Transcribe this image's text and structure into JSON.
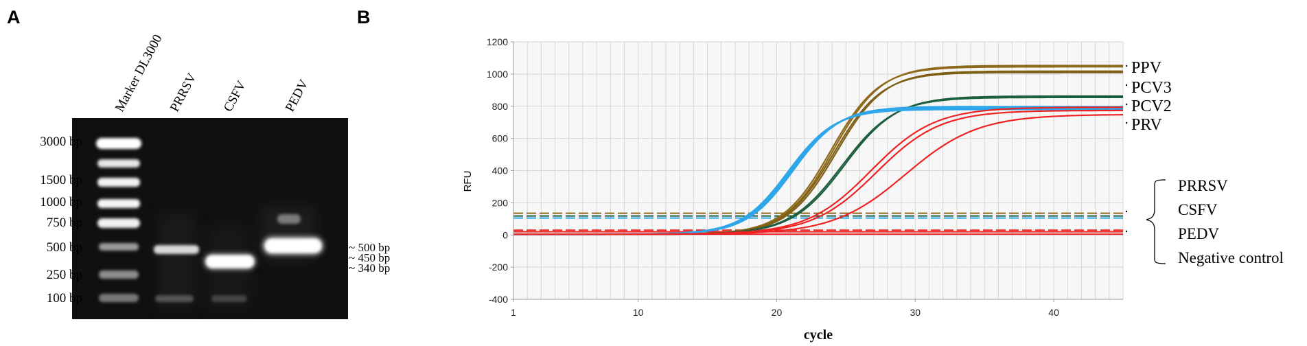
{
  "panel_a": {
    "letter": "A",
    "lanes": [
      "Marker DL3000",
      "PRRSV",
      "CSFV",
      "PEDV"
    ],
    "marker_sizes": [
      "3000 bp",
      "1500 bp",
      "1000 bp",
      "750 bp",
      "500 bp",
      "250 bp",
      "100 bp"
    ],
    "band_labels": [
      "~ 500 bp",
      "~ 450 bp",
      "~ 340 bp"
    ]
  },
  "panel_b": {
    "letter": "B",
    "colors": {
      "ppv": "#8f6a1c",
      "pcv3": "#7e5f16",
      "pcv2": "#1d5e3e",
      "blue": "#2ea6ea",
      "red": "#ee2222",
      "grid": "#d6d6d6",
      "plot_bg": "#f7f7f7"
    },
    "chart_data": {
      "type": "line",
      "xlabel": "cycle",
      "ylabel": "RFU",
      "xlim": [
        1,
        45
      ],
      "ylim": [
        -400,
        1200
      ],
      "x_ticks": [
        1,
        10,
        20,
        30,
        40
      ],
      "y_ticks": [
        -400,
        -200,
        0,
        200,
        400,
        600,
        800,
        1000,
        1200
      ],
      "grid": true,
      "series": [
        {
          "name": "PPV",
          "color": "ppv",
          "plateau": 1045,
          "midpoint": 24.0,
          "slope": 1.75,
          "count": 2
        },
        {
          "name": "PCV3",
          "color": "pcv3",
          "plateau": 1010,
          "midpoint": 24.2,
          "slope": 1.75,
          "count": 2
        },
        {
          "name": "PCV2",
          "color": "pcv2",
          "plateau": 855,
          "midpoint": 24.8,
          "slope": 1.9,
          "count": 2
        },
        {
          "name": "",
          "color": "blue",
          "plateau": 785,
          "midpoint": 21.0,
          "slope": 1.7,
          "count": 3
        },
        {
          "name": "PRV",
          "color": "red",
          "plateau": 790,
          "midpoint": 26.8,
          "slope": 2.3,
          "count": 1
        },
        {
          "name": "",
          "color": "red",
          "plateau": 770,
          "midpoint": 27.2,
          "slope": 2.3,
          "count": 1
        },
        {
          "name": "",
          "color": "red",
          "plateau": 745,
          "midpoint": 29.3,
          "slope": 2.6,
          "count": 1
        }
      ],
      "flat_lines": [
        {
          "color": "red",
          "value": 20
        },
        {
          "color": "red",
          "value": 5
        }
      ],
      "thresholds": [
        {
          "color": "ppv",
          "value": 135
        },
        {
          "color": "pcv2",
          "value": 118
        },
        {
          "color": "blue",
          "value": 105
        },
        {
          "color": "red",
          "value": 30
        }
      ],
      "right_labels": [
        "PPV",
        "PCV3",
        "PCV2",
        "PRV"
      ],
      "bracket_labels": [
        "PRRSV",
        "CSFV",
        "PEDV",
        "Negative control"
      ]
    }
  }
}
